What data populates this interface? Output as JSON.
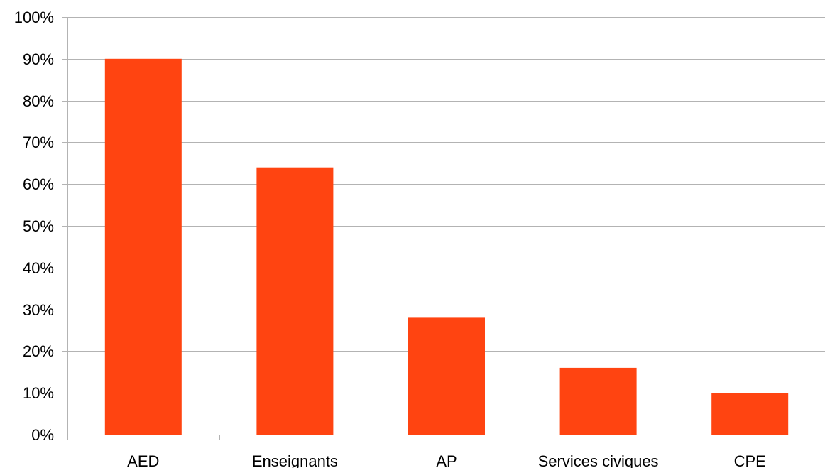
{
  "chart_data": {
    "type": "bar",
    "categories": [
      "AED",
      "Enseignants",
      "AP",
      "Services civiques",
      "CPE"
    ],
    "values": [
      90,
      64,
      28,
      16,
      10
    ],
    "ylim": [
      0,
      100
    ],
    "ytick_step": 10,
    "ytick_labels": [
      "0%",
      "10%",
      "20%",
      "30%",
      "40%",
      "50%",
      "60%",
      "70%",
      "80%",
      "90%",
      "100%"
    ],
    "title": "",
    "xlabel": "",
    "ylabel": "",
    "grid": true,
    "legend": "none",
    "bar_color": "#ff4411",
    "grid_color": "#b3b3b3"
  }
}
